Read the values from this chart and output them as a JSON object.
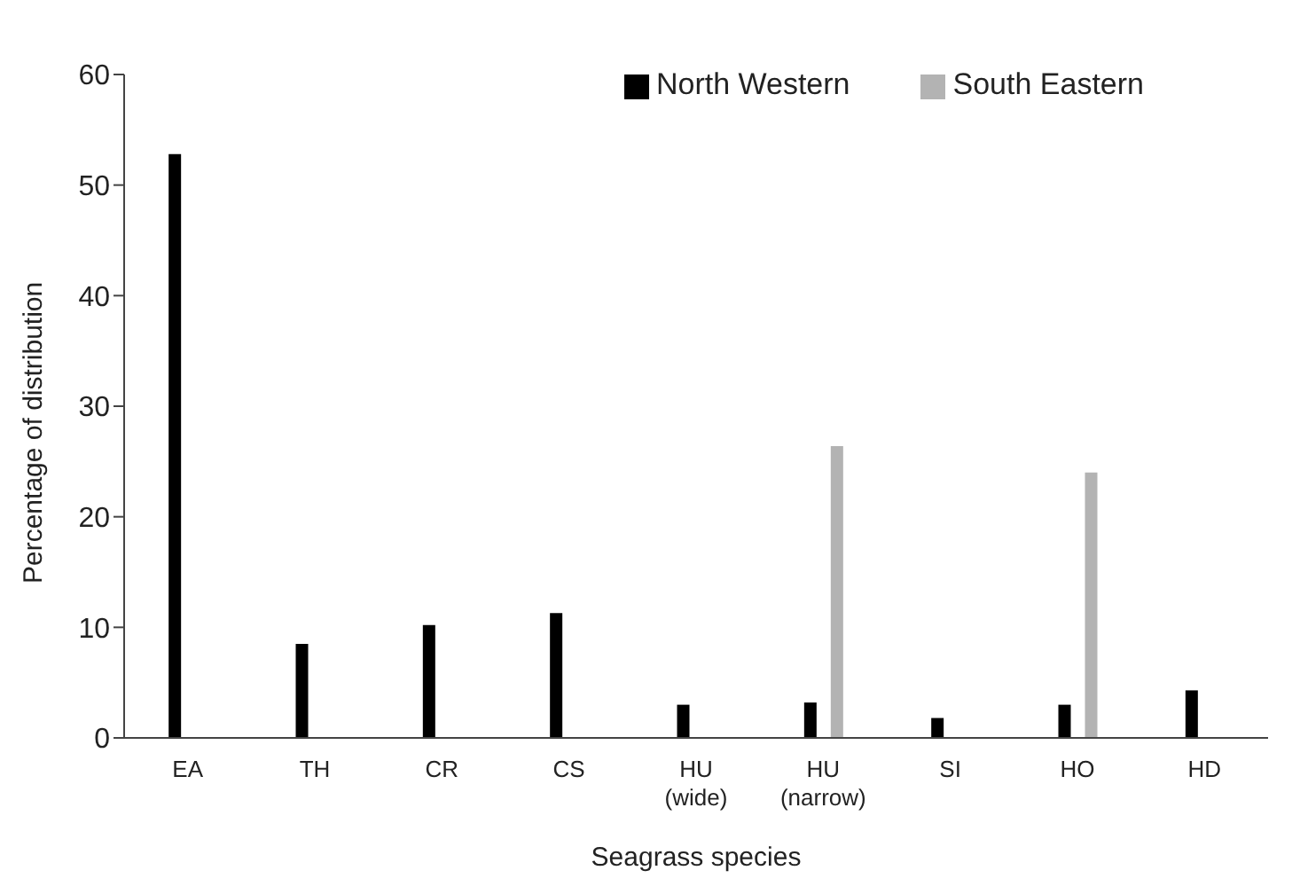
{
  "chart_data": {
    "type": "bar",
    "xlabel": "Seagrass species",
    "ylabel": "Percentage of distribution",
    "categories": [
      "EA",
      "TH",
      "CR",
      "CS",
      "HU (wide)",
      "HU (narrow)",
      "SI",
      "HO",
      "HD"
    ],
    "series": [
      {
        "name": "North Western",
        "color": "#000000",
        "values": [
          52.8,
          8.5,
          10.2,
          11.3,
          3.0,
          3.2,
          1.8,
          3.0,
          4.3
        ]
      },
      {
        "name": "South Eastern",
        "color": "#b3b3b3",
        "values": [
          null,
          null,
          null,
          null,
          null,
          26.4,
          null,
          24.0,
          null
        ]
      }
    ],
    "ylim": [
      0,
      60
    ],
    "yticks": [
      0,
      10,
      20,
      30,
      40,
      50,
      60
    ],
    "grid": false,
    "legend": "top right"
  }
}
